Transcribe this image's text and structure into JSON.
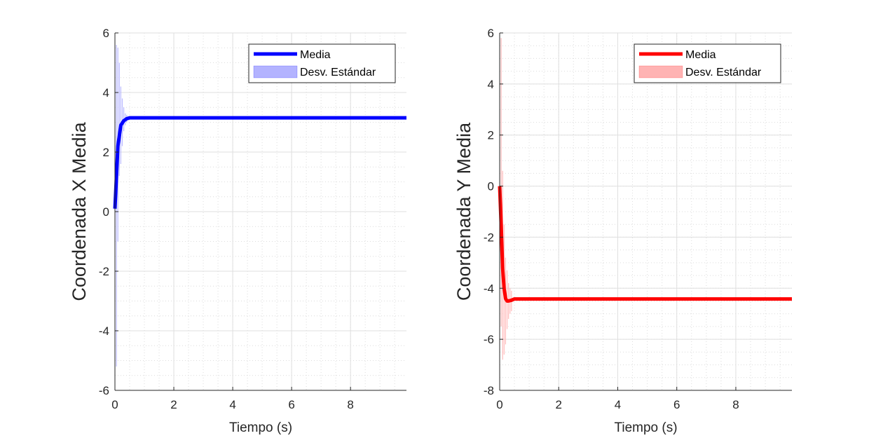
{
  "chart_data": [
    {
      "type": "line",
      "xlabel": "Tiempo (s)",
      "ylabel": "Coordenada X Media",
      "xlim": [
        0,
        9.9
      ],
      "ylim": [
        -6,
        6
      ],
      "xticks": [
        0,
        2,
        4,
        6,
        8
      ],
      "yticks": [
        -6,
        -4,
        -2,
        0,
        2,
        4,
        6
      ],
      "grid": true,
      "minor_grid": true,
      "legend_position": "top-right",
      "color": "#0000ff",
      "std_fill_color": "#b3b3ff",
      "legend": {
        "mean_label": "Media",
        "std_label": "Desv. Estándar"
      },
      "series": [
        {
          "name": "Media",
          "x": [
            0,
            0.1,
            0.2,
            0.3,
            0.4,
            0.5,
            0.6,
            1.0,
            2.0,
            4.0,
            6.0,
            8.0,
            9.9
          ],
          "values": [
            0.1,
            2.2,
            2.9,
            3.05,
            3.12,
            3.15,
            3.15,
            3.15,
            3.15,
            3.15,
            3.15,
            3.15,
            3.15
          ]
        }
      ],
      "std_band": {
        "x": [
          0.05,
          0.1,
          0.15,
          0.2,
          0.25,
          0.3,
          0.35,
          0.4
        ],
        "low": [
          -5.2,
          -1.0,
          1.2,
          1.6,
          2.2,
          2.7,
          2.9,
          3.0
        ],
        "high": [
          5.6,
          5.5,
          5.0,
          4.2,
          3.8,
          3.5,
          3.3,
          3.25
        ]
      }
    },
    {
      "type": "line",
      "xlabel": "Tiempo (s)",
      "ylabel": "Coordenada Y Media",
      "xlim": [
        0,
        9.9
      ],
      "ylim": [
        -8,
        6
      ],
      "xticks": [
        0,
        2,
        4,
        6,
        8
      ],
      "yticks": [
        -8,
        -6,
        -4,
        -2,
        0,
        2,
        4,
        6
      ],
      "grid": true,
      "minor_grid": true,
      "legend_position": "top-right",
      "color": "#ff0000",
      "std_fill_color": "#ffb3b3",
      "legend": {
        "mean_label": "Media",
        "std_label": "Desv. Estándar"
      },
      "series": [
        {
          "name": "Media",
          "x": [
            0,
            0.05,
            0.1,
            0.15,
            0.2,
            0.25,
            0.3,
            0.4,
            0.5,
            0.6,
            1.0,
            2.0,
            4.0,
            6.0,
            8.0,
            9.9
          ],
          "values": [
            0.0,
            -1.5,
            -3.2,
            -4.0,
            -4.4,
            -4.5,
            -4.5,
            -4.47,
            -4.42,
            -4.42,
            -4.42,
            -4.42,
            -4.42,
            -4.42,
            -4.42,
            -4.42
          ]
        }
      ],
      "std_band": {
        "x": [
          0.05,
          0.1,
          0.15,
          0.2,
          0.25,
          0.3,
          0.35,
          0.4
        ],
        "low": [
          -5.5,
          -6.8,
          -6.6,
          -6.2,
          -5.6,
          -5.2,
          -5.0,
          -4.9
        ],
        "high": [
          5.8,
          0.6,
          -1.5,
          -2.8,
          -3.3,
          -3.8,
          -4.0,
          -4.1
        ]
      }
    }
  ]
}
